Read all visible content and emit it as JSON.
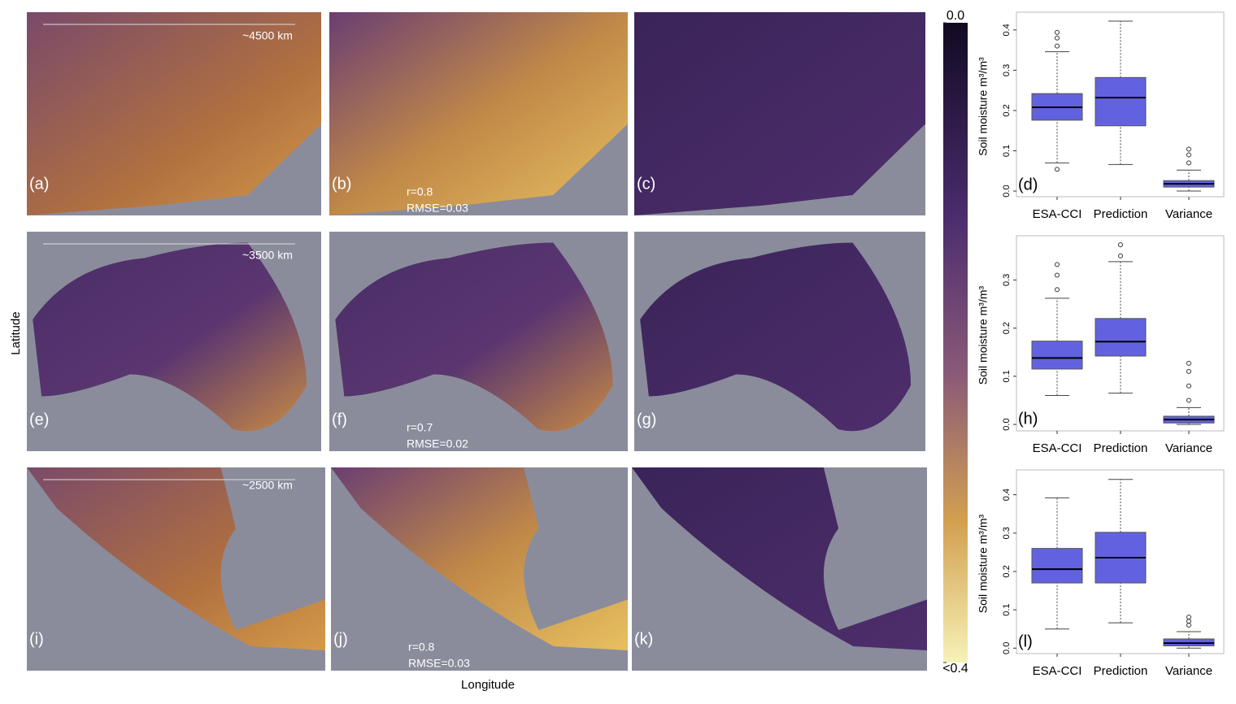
{
  "maps": {
    "xlabel": "Longitude",
    "ylabel": "Latitude",
    "panels": [
      {
        "label": "(a)"
      },
      {
        "label": "(b)"
      },
      {
        "label": "(c)"
      },
      {
        "label": "(e)"
      },
      {
        "label": "(f)"
      },
      {
        "label": "(g)"
      },
      {
        "label": "(i)"
      },
      {
        "label": "(j)"
      },
      {
        "label": "(k)"
      }
    ],
    "scale_labels": [
      "~4500 km",
      "~3500 km",
      "~2500 km"
    ],
    "stats": [
      {
        "r": "r=0.8",
        "rmse": "RMSE=0.03"
      },
      {
        "r": "r=0.7",
        "rmse": "RMSE=0.02"
      },
      {
        "r": "r=0.8",
        "rmse": "RMSE=0.03"
      }
    ],
    "colorbar": {
      "lim": [
        0,
        0.4
      ],
      "ticks": [
        {
          "value": 0,
          "label": "0.0"
        },
        {
          "value": 0.4,
          "label": "<0.4"
        }
      ]
    }
  },
  "chart_data": [
    {
      "type": "box",
      "panel_label": "(d)",
      "ylabel": "Soil moisture m³/m³",
      "color": "#6262e0",
      "categories": [
        "ESA-CCI",
        "Prediction",
        "Variance"
      ],
      "ylim": [
        -0.01,
        0.43
      ],
      "yticks": [
        {
          "value": 0,
          "label": "0.0"
        },
        0.1,
        0.2,
        0.3,
        0.4
      ],
      "boxes": [
        {
          "whislo": 0.07,
          "q1": 0.176,
          "med": 0.208,
          "q3": 0.242,
          "whishi": 0.346,
          "outliers": [
            0.054,
            0.36,
            0.38,
            0.394
          ]
        },
        {
          "whislo": 0.066,
          "q1": 0.162,
          "med": 0.232,
          "q3": 0.282,
          "whishi": 0.422,
          "outliers": []
        },
        {
          "whislo": 0.0,
          "q1": 0.01,
          "med": 0.018,
          "q3": 0.026,
          "whishi": 0.052,
          "outliers": [
            0.07,
            0.09,
            0.104
          ]
        }
      ]
    },
    {
      "type": "box",
      "panel_label": "(h)",
      "ylabel": "Soil moisture m³/m³",
      "color": "#6262e0",
      "categories": [
        "ESA-CCI",
        "Prediction",
        "Variance"
      ],
      "ylim": [
        -0.01,
        0.38
      ],
      "yticks": [
        {
          "value": 0,
          "label": "0.0"
        },
        0.1,
        0.2,
        0.3
      ],
      "boxes": [
        {
          "whislo": 0.06,
          "q1": 0.115,
          "med": 0.138,
          "q3": 0.173,
          "whishi": 0.262,
          "outliers": [
            0.28,
            0.31,
            0.332
          ]
        },
        {
          "whislo": 0.065,
          "q1": 0.142,
          "med": 0.172,
          "q3": 0.22,
          "whishi": 0.338,
          "outliers": [
            0.35,
            0.373
          ]
        },
        {
          "whislo": 0.0,
          "q1": 0.003,
          "med": 0.01,
          "q3": 0.017,
          "whishi": 0.035,
          "outliers": [
            0.05,
            0.08,
            0.11,
            0.127
          ]
        }
      ]
    },
    {
      "type": "box",
      "panel_label": "(l)",
      "ylabel": "Soil moisture m³/m³",
      "color": "#6262e0",
      "categories": [
        "ESA-CCI",
        "Prediction",
        "Variance"
      ],
      "ylim": [
        -0.01,
        0.45
      ],
      "yticks": [
        {
          "value": 0,
          "label": "0.0"
        },
        0.1,
        0.2,
        0.3,
        0.4
      ],
      "boxes": [
        {
          "whislo": 0.05,
          "q1": 0.17,
          "med": 0.206,
          "q3": 0.26,
          "whishi": 0.392,
          "outliers": []
        },
        {
          "whislo": 0.066,
          "q1": 0.17,
          "med": 0.236,
          "q3": 0.302,
          "whishi": 0.44,
          "outliers": []
        },
        {
          "whislo": 0.0,
          "q1": 0.006,
          "med": 0.013,
          "q3": 0.024,
          "whishi": 0.043,
          "outliers": [
            0.06,
            0.07,
            0.081
          ]
        }
      ]
    }
  ]
}
